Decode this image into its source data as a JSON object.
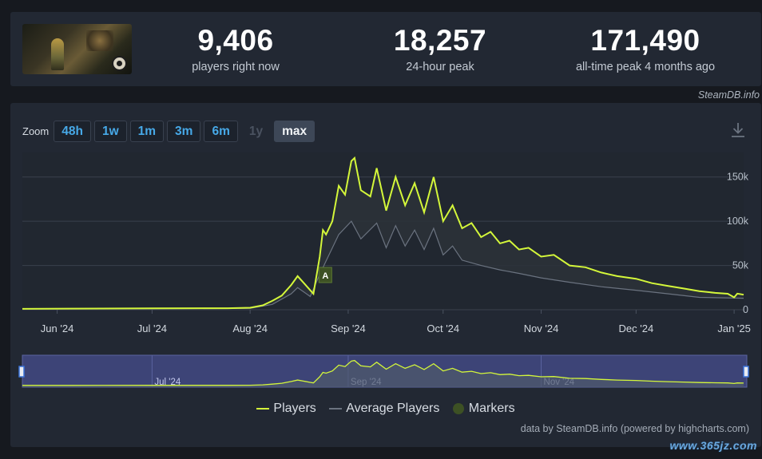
{
  "stats": [
    {
      "value": "9,406",
      "label": "players right now"
    },
    {
      "value": "18,257",
      "label": "24-hour peak"
    },
    {
      "value": "171,490",
      "label": "all-time peak 4 months ago"
    }
  ],
  "credit_top": "SteamDB.info",
  "zoom": {
    "label": "Zoom",
    "buttons": [
      {
        "label": "48h",
        "state": "normal"
      },
      {
        "label": "1w",
        "state": "normal"
      },
      {
        "label": "1m",
        "state": "normal"
      },
      {
        "label": "3m",
        "state": "normal"
      },
      {
        "label": "6m",
        "state": "normal"
      },
      {
        "label": "1y",
        "state": "disabled"
      },
      {
        "label": "max",
        "state": "active"
      }
    ]
  },
  "icons": {
    "download": "download-icon",
    "marker": "marker-flag-icon"
  },
  "colors": {
    "players": "#d4f73a",
    "average": "#6b7380",
    "markers": "#3d5124",
    "nav_fill": "#3d4477"
  },
  "chart_data": {
    "type": "line",
    "title": "",
    "xlabel": "",
    "ylabel": "",
    "x_range": [
      "2024-05-21",
      "2025-01-04"
    ],
    "ylim": [
      0,
      175000
    ],
    "y_ticks": [
      {
        "value": 0,
        "label": "0"
      },
      {
        "value": 50000,
        "label": "50k"
      },
      {
        "value": 100000,
        "label": "100k"
      },
      {
        "value": 150000,
        "label": "150k"
      }
    ],
    "x_ticks": [
      {
        "date": "2024-06-01",
        "label": "Jun '24"
      },
      {
        "date": "2024-07-01",
        "label": "Jul '24"
      },
      {
        "date": "2024-08-01",
        "label": "Aug '24"
      },
      {
        "date": "2024-09-01",
        "label": "Sep '24"
      },
      {
        "date": "2024-10-01",
        "label": "Oct '24"
      },
      {
        "date": "2024-11-01",
        "label": "Nov '24"
      },
      {
        "date": "2024-12-01",
        "label": "Dec '24"
      },
      {
        "date": "2025-01-01",
        "label": "Jan '25"
      }
    ],
    "navigator_labels": [
      {
        "date": "2024-07-01",
        "label": "Jul '24"
      },
      {
        "date": "2024-09-01",
        "label": "Sep '24"
      },
      {
        "date": "2024-11-01",
        "label": "Nov '24"
      }
    ],
    "markers": [
      {
        "date": "2024-08-23",
        "label": "A"
      }
    ],
    "legend": {
      "position": "bottom-center",
      "items": [
        "Players",
        "Average Players",
        "Markers"
      ]
    },
    "series": [
      {
        "name": "Players",
        "points": [
          [
            "2024-05-21",
            1000
          ],
          [
            "2024-06-05",
            1300
          ],
          [
            "2024-07-01",
            1500
          ],
          [
            "2024-07-25",
            1700
          ],
          [
            "2024-08-01",
            2300
          ],
          [
            "2024-08-05",
            5000
          ],
          [
            "2024-08-08",
            10000
          ],
          [
            "2024-08-11",
            16000
          ],
          [
            "2024-08-14",
            28000
          ],
          [
            "2024-08-16",
            38000
          ],
          [
            "2024-08-18",
            30000
          ],
          [
            "2024-08-20",
            22000
          ],
          [
            "2024-08-21",
            18000
          ],
          [
            "2024-08-23",
            60000
          ],
          [
            "2024-08-24",
            90000
          ],
          [
            "2024-08-25",
            85000
          ],
          [
            "2024-08-27",
            100000
          ],
          [
            "2024-08-29",
            140000
          ],
          [
            "2024-08-31",
            130000
          ],
          [
            "2024-09-02",
            168000
          ],
          [
            "2024-09-03",
            171490
          ],
          [
            "2024-09-05",
            135000
          ],
          [
            "2024-09-08",
            128000
          ],
          [
            "2024-09-10",
            160000
          ],
          [
            "2024-09-13",
            112000
          ],
          [
            "2024-09-16",
            150000
          ],
          [
            "2024-09-19",
            118000
          ],
          [
            "2024-09-22",
            143000
          ],
          [
            "2024-09-25",
            110000
          ],
          [
            "2024-09-28",
            150000
          ],
          [
            "2024-10-01",
            100000
          ],
          [
            "2024-10-04",
            118000
          ],
          [
            "2024-10-07",
            92000
          ],
          [
            "2024-10-10",
            98000
          ],
          [
            "2024-10-13",
            82000
          ],
          [
            "2024-10-16",
            88000
          ],
          [
            "2024-10-19",
            75000
          ],
          [
            "2024-10-22",
            78000
          ],
          [
            "2024-10-25",
            68000
          ],
          [
            "2024-10-28",
            70000
          ],
          [
            "2024-11-01",
            60000
          ],
          [
            "2024-11-05",
            62000
          ],
          [
            "2024-11-10",
            50000
          ],
          [
            "2024-11-15",
            48000
          ],
          [
            "2024-11-20",
            42000
          ],
          [
            "2024-11-25",
            38000
          ],
          [
            "2024-12-01",
            35000
          ],
          [
            "2024-12-06",
            30000
          ],
          [
            "2024-12-11",
            27000
          ],
          [
            "2024-12-16",
            24000
          ],
          [
            "2024-12-21",
            21000
          ],
          [
            "2024-12-26",
            19000
          ],
          [
            "2024-12-30",
            18000
          ],
          [
            "2025-01-01",
            14000
          ],
          [
            "2025-01-02",
            18257
          ],
          [
            "2025-01-04",
            17000
          ]
        ]
      },
      {
        "name": "Average Players",
        "points": [
          [
            "2024-05-21",
            700
          ],
          [
            "2024-07-01",
            1000
          ],
          [
            "2024-08-01",
            1500
          ],
          [
            "2024-08-08",
            6000
          ],
          [
            "2024-08-14",
            18000
          ],
          [
            "2024-08-16",
            25000
          ],
          [
            "2024-08-20",
            15000
          ],
          [
            "2024-08-23",
            40000
          ],
          [
            "2024-08-25",
            55000
          ],
          [
            "2024-08-29",
            85000
          ],
          [
            "2024-09-02",
            100000
          ],
          [
            "2024-09-05",
            80000
          ],
          [
            "2024-09-10",
            98000
          ],
          [
            "2024-09-13",
            70000
          ],
          [
            "2024-09-16",
            95000
          ],
          [
            "2024-09-19",
            72000
          ],
          [
            "2024-09-22",
            90000
          ],
          [
            "2024-09-25",
            68000
          ],
          [
            "2024-09-28",
            92000
          ],
          [
            "2024-10-01",
            62000
          ],
          [
            "2024-10-04",
            72000
          ],
          [
            "2024-10-07",
            56000
          ],
          [
            "2024-10-13",
            50000
          ],
          [
            "2024-10-19",
            45000
          ],
          [
            "2024-10-25",
            41000
          ],
          [
            "2024-11-01",
            36000
          ],
          [
            "2024-11-10",
            31000
          ],
          [
            "2024-11-20",
            26000
          ],
          [
            "2024-12-01",
            22000
          ],
          [
            "2024-12-11",
            18000
          ],
          [
            "2024-12-21",
            14000
          ],
          [
            "2025-01-04",
            13000
          ]
        ]
      }
    ]
  },
  "credit_bottom": "data by SteamDB.info (powered by highcharts.com)",
  "watermark": "www.365jz.com"
}
